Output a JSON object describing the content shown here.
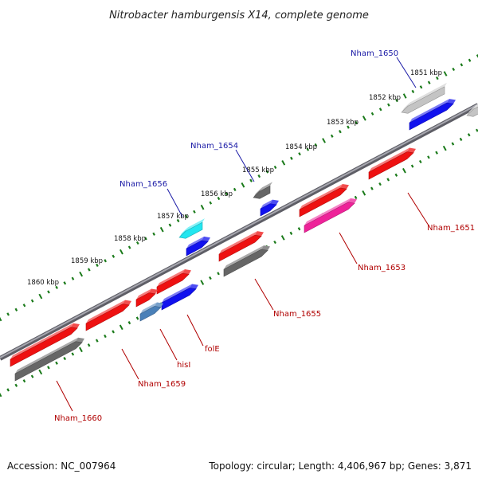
{
  "title": "Nitrobacter hamburgensis X14, complete genome",
  "tick_labels": [
    "1851 kbp",
    "1852 kbp",
    "1853 kbp",
    "1854 kbp",
    "1855 kbp",
    "1856 kbp",
    "1857 kbp",
    "1858 kbp",
    "1859 kbp",
    "1860 kbp"
  ],
  "genes_top": [
    "Nham_1650",
    "Nham_1654",
    "Nham_1656"
  ],
  "genes_bottom": [
    "Nham_1651",
    "Nham_1653",
    "Nham_1655",
    "folE",
    "hisI",
    "Nham_1659",
    "Nham_1660"
  ],
  "colors": {
    "backbone": "#8a8a92",
    "ticks": "#1a7a1a",
    "red": "#ee1111",
    "blue": "#1111ee",
    "gray": "#666666",
    "light_gray": "#c4c4c4",
    "cyan": "#22e6f0",
    "pink": "#ee2299",
    "steel": "#4a80b8"
  },
  "footer": {
    "accession": "Accession: NC_007964",
    "stats": "Topology: circular; Length: 4,406,967 bp; Genes: 3,871"
  }
}
